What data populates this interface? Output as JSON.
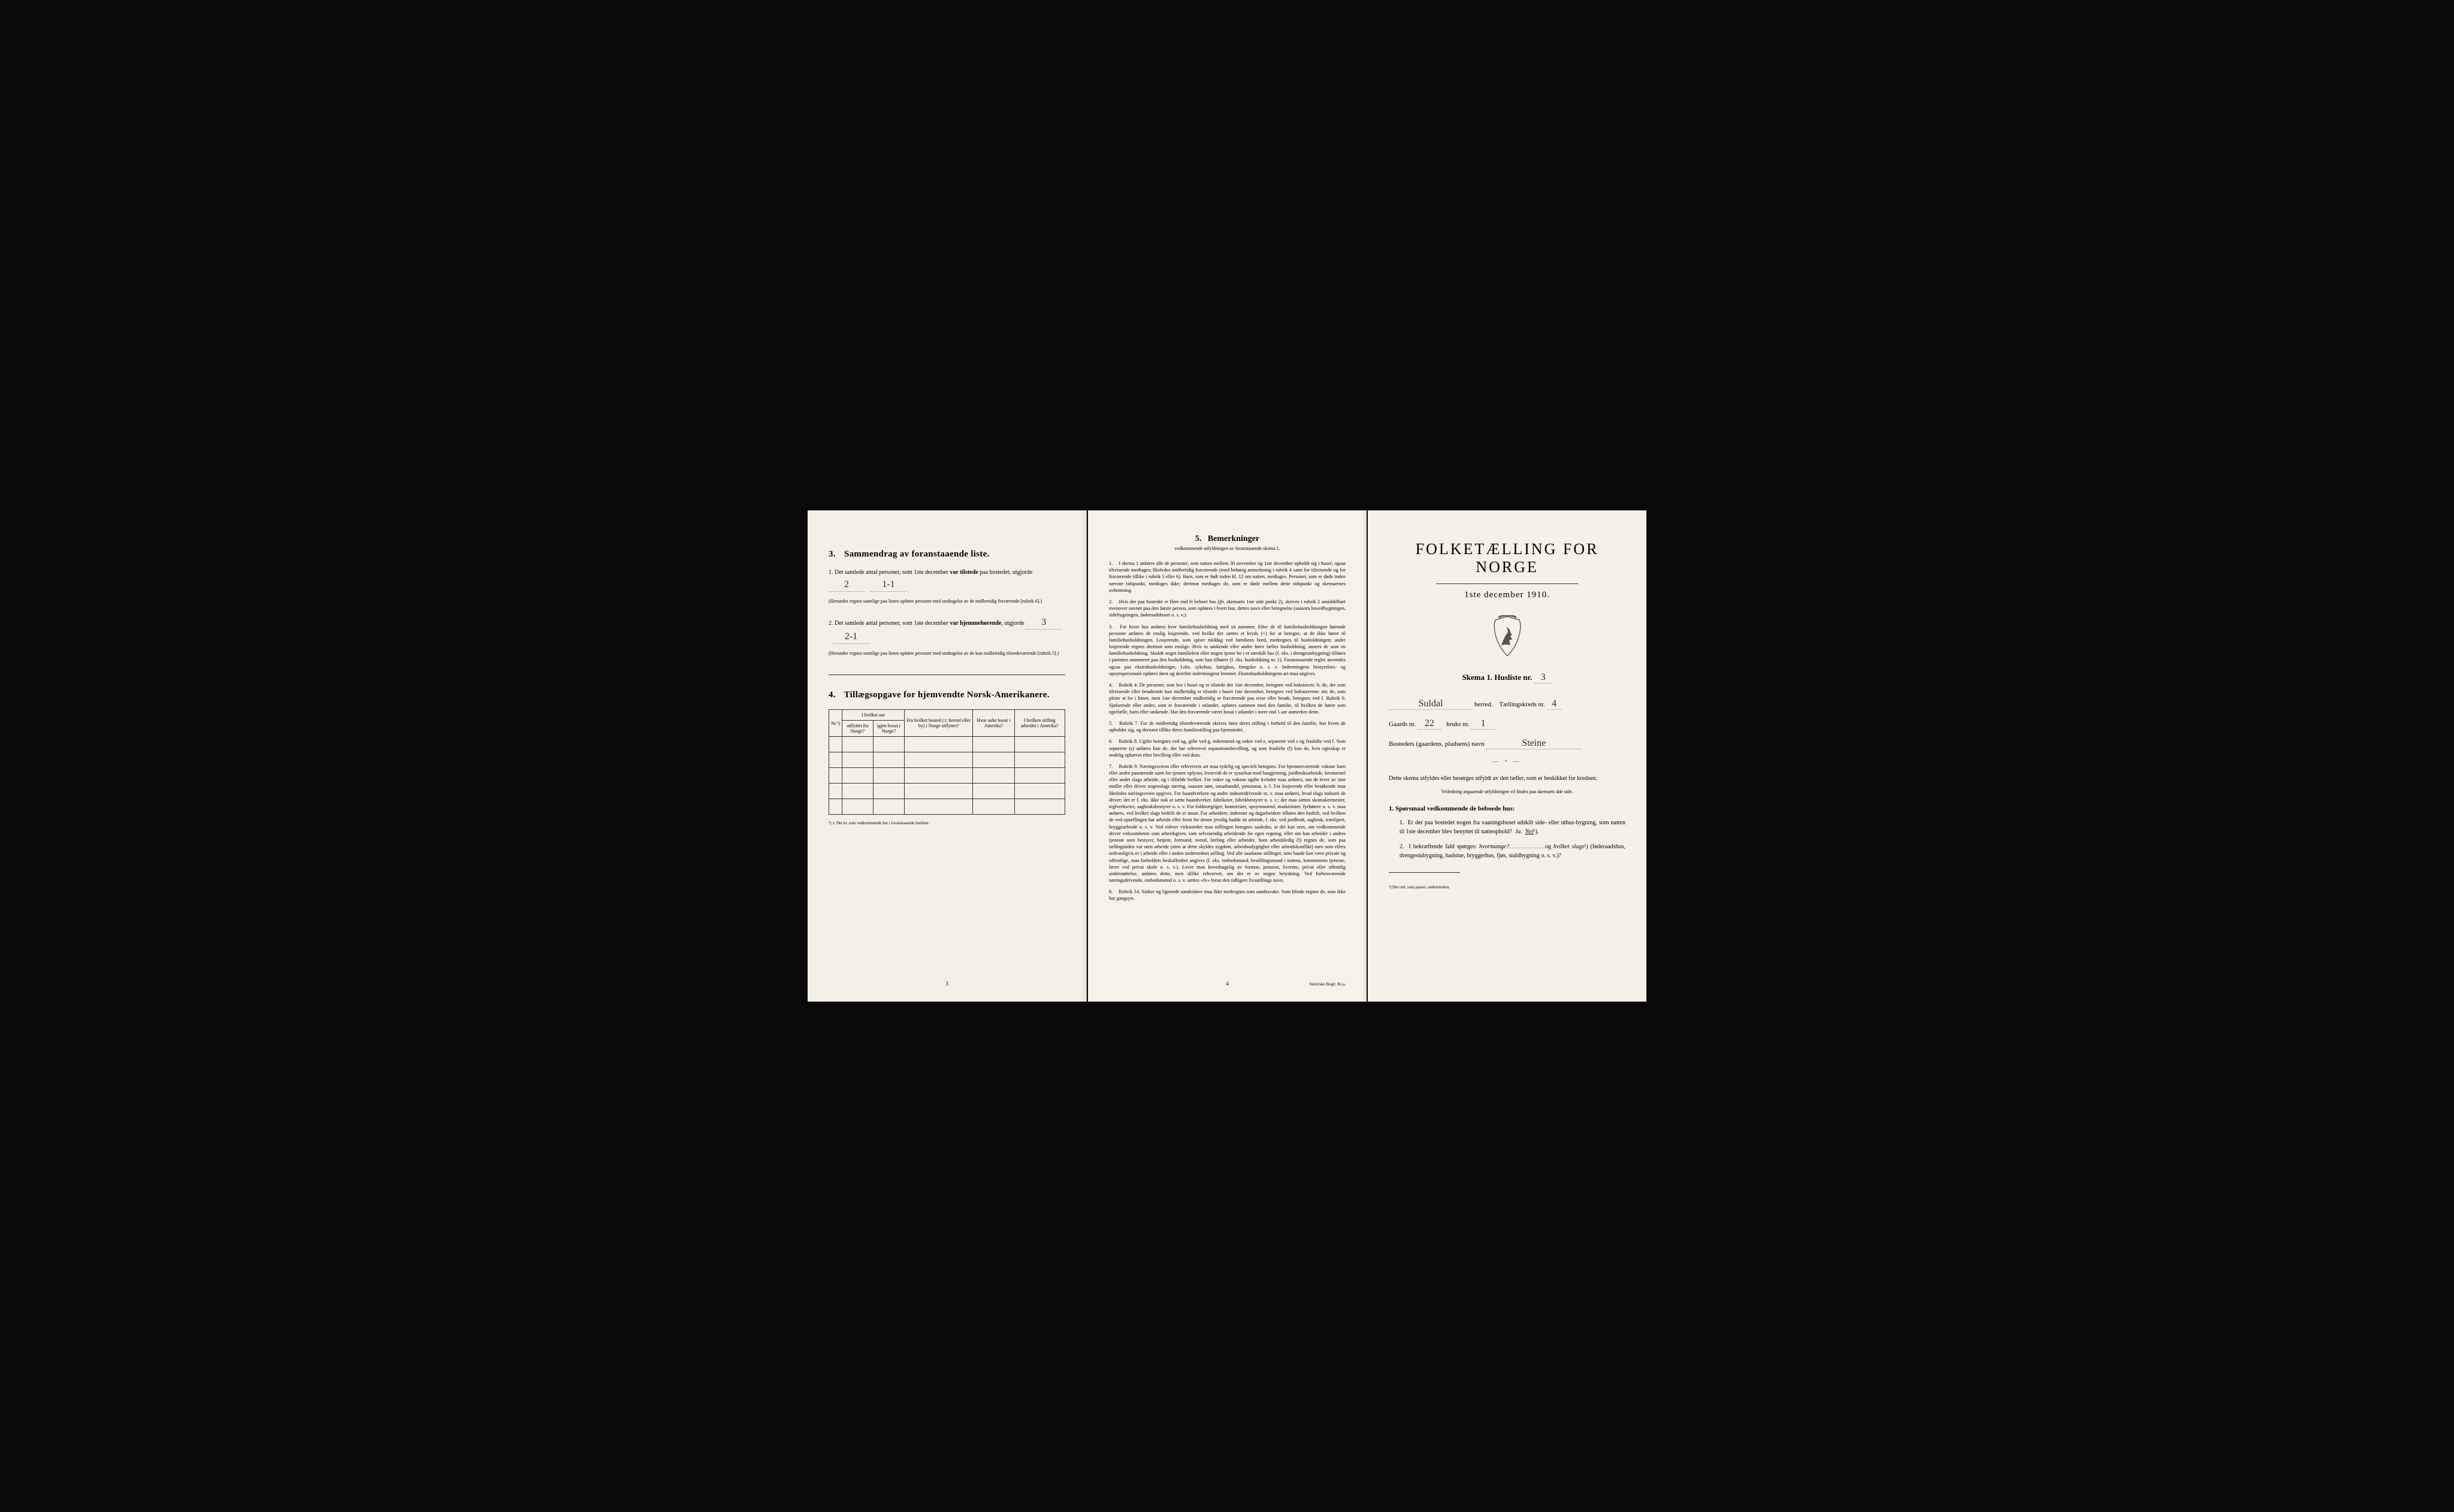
{
  "page3": {
    "section3": {
      "num": "3.",
      "title": "Sammendrag av foranstaaende liste.",
      "item1_pre": "1.  Det samlede antal personer, som 1ste december ",
      "item1_bold": "var tilstede",
      "item1_post": " paa bostedet, utgjorde",
      "val1a": "2",
      "val1b": "1-1",
      "item1_note": "(Herunder regnes samtlige paa listen opførte personer med undtagelse av de midlertidig fraværende [rubrik 6].)",
      "item2_pre": "2.  Det samlede antal personer, som 1ste december ",
      "item2_bold": "var hjemmehørende",
      "item2_post": ", utgjorde",
      "val2a": "3",
      "val2b": "2-1",
      "item2_note": "(Herunder regnes samtlige paa listen opførte personer med undtagelse av de kun midlertidig tilstedeværende [rubrik 5].)"
    },
    "section4": {
      "num": "4.",
      "title": "Tillægsopgave for hjemvendte Norsk-Amerikanere.",
      "col_nr": "Nr.¹)",
      "col_grp1": "I hvilket aar",
      "col1a": "utflyttet fra Norge?",
      "col1b": "igjen bosat i Norge?",
      "col2_top": "Fra hvilket bosted (ɔ: herred eller by) i Norge utflyttet?",
      "col3": "Hvor sidst bosat i Amerika?",
      "col4": "I hvilken stilling arbeidet i Amerika?",
      "footnote": "¹) ɔ: Det nr. som vedkommende har i foranstaaende husliste."
    },
    "page_num": "3"
  },
  "page4": {
    "num": "5.",
    "title": "Bemerkninger",
    "subtitle": "vedkommende utfyldningen av foranstaaende skema 1.",
    "items": [
      "I skema 1 anføres alle de personer, som natten mellem 30 november og 1ste december opholdt sig i huset; ogsaa tilreisende medtages; likeledes midlertidig fraværende (med behørig anmerkning i rubrik 4 samt for tilreisende og for fraværende tillike i rubrik 5 eller 6). Barn, som er født inden kl. 12 om natten, medtages. Personer, som er døde inden nævnte tidspunkt, medtages ikke; derimot medtages de, som er døde mellem dette tidspunkt og skemaernes avhentning.",
      "Hvis der paa bostedet er flere end ét beboet hus (jfr. skemaets 1ste side punkt 2), skrives i rubrik 2 umiddelbart ovenover navnet paa den første person, som opføres i hvert hus, dettes navn eller betegnelse (saasom hovedbygningen, sidebygningen, føderaadshuset o. s. v.).",
      "For hvert hus anføres hver familiehusholdning med sit nummer. Efter de til familiehusholdningen hørende personer anføres de enslig losjerende, ved hvilke der sættes et kryds (×) for at betegne, at de ikke hører til familiehusholdningen. Losjerende, som spiser middag ved familiens bord, medregnes til husholdningen; andre losjerende regnes derimot som enslige. Hvis to søskende eller andre fører fælles husholdning, ansees de som en familiehusholdning. Skulde noget familielem eller nogen tjener bo i et særskilt hus (f. eks. i drengestubygning) tilføies i parentes nummeret paa den husholdning, som han tilhører (f. eks. husholdning nr. 1).\n    Foranstaaende regler anvendes ogsaa paa ekstrahusholdninger, f.eks. sykehus, fattighus, fængsler o. s. v. Indretningens bestyrelses- og opsynspersonale opføres først og derefter indretningens lemmer. Ekstrahusholdningens art maa angives.",
      "Rubrik 4. De personer, som bor i huset og er tilstede der 1ste december, betegnes ved bokstaven: b; de, der som tilreisende eller besøkende kun midlertidig er tilstede i huset 1ste december, betegnes ved bokstaverne: mt; de, som pleier at bo i huset, men 1ste december midlertidig er fraværende paa reise eller besøk, betegnes ved f.\n    Rubrik 6. Sjøfarende eller andre, som er fraværende i utlandet, opføres sammen med den familie, til hvilken de hører som egtefælle, barn eller søskende.\n    Har den fraværende været bosat i utlandet i mere end 1 aar anmerkes dette.",
      "Rubrik 7. For de midlertidig tilstedeværende skrives først deres stilling i forhold til den familie, hos hvem de opholder sig, og dernæst tillike deres familiestilling paa hjemstedet.",
      "Rubrik 8. Ugifte betegnes ved ug, gifte ved g, enkemænd og enker ved e, separerte ved s og fraskilte ved f. Som separerte (s) anføres kun de, der har erhvervet separationsbevilling, og som fraskilte (f) kun de, hvis egteskap er endelig ophævet efter bevilling eller ved dom.",
      "Rubrik 9. Næringsveiens eller erhvervets art maa tydelig og specielt betegnes.\n    For hjemmeværende voksne barn eller andre paarørende samt for tjenere oplyses, hvorvidt de er sysselsat med husgjerning, jordbruksarbeide, kreaturstel eller andet slags arbeide, og i tilfælde hvilket. For enker og voksne ugifte kvinder maa anføres, om de lever av sine midler eller driver nogenslags næring, saasom søm, smaahandel, pensionat, o. l.\n    For losjerende eller besøkende maa likeledes næringsveien opgives.\n    For haandverkere og andre industridrivende m. v. maa anføres, hvad slags industri de driver; det er f. eks. ikke nok at sætte haandverker, fabrikeier, fabrikbestyrer o. s. v.; der maa sættes skomakermester, teglverkseier, sagbruksbestyrer o. s. v.\n    For fuldmægtiger, kontorister, opsynsmænd, maskinister, fyrbøtere o. s. v. maa anføres, ved hvilket slags bedrift de er ansat.\n    For arbeidere, inderster og dagarbeidere tilføies den bedrift, ved hvilken de ved optællingen har arbeide eller forut for denne jevnlig hadde sit arbeide, f. eks. ved jordbruk, sagbruk, træsliperi, bryggearbeide o. s. v.\n    Ved enhver virksomhet maa stillingen betegnes saaledes, at det kan sees, om vedkommende driver virksomheten som arbeidsgiver, som selvstændig arbeidende for egen regning, eller om han arbeider i andres tjeneste som bestyrer, betjent, formand, svend, lærling eller arbeider.\n    Som arbeidsledig (l) regnes de, som paa tællingstiden var uten arbeide (uten at dette skyldes sygdom, arbeidsudygtighet eller arbeidskonflikt) men som ellers sedvanligvis er i arbeide eller i anden underordnet stilling.\n    Ved alle saadanne stillinger, som baade kan være private og offentlige, maa forholdets beskaffenhet angives (f. eks. embedsmand, bestillingsmand i statens, kommunens tjeneste, lærer ved privat skole o. s. v.).\n    Lever man hovedsagelig av formue, pension, livrente, privat eller offentlig understøttelse, anføres dette, men tillike erhvervet, om det er av nogen betydning.\n    Ved forhenværende næringsdrivende, embedsmænd o. s. v. sættes «fv» foran den tidligere livsstillings navn.",
      "Rubrik 14. Sinker og lignende aandssløve maa ikke medregnes som aandssvake. Som blinde regnes de, som ikke har gangsyn."
    ],
    "page_num": "4",
    "printer": "Steen'ske Bogtr. Kr.a."
  },
  "page1": {
    "main_title": "FOLKETÆLLING FOR NORGE",
    "date": "1ste december 1910.",
    "skema_label": "Skema 1.  Husliste nr.",
    "husliste_nr": "3",
    "herred_val": "Suldal",
    "herred_label": "herred.",
    "kreds_label": "Tællingskreds nr.",
    "kreds_val": "4",
    "gaards_label": "Gaards nr.",
    "gaards_val": "22",
    "bruks_label": "bruks nr.",
    "bruks_val": "1",
    "bostedet_label": "Bostedets (gaardens, pladsens) navn",
    "bostedet_val": "Steine",
    "instr1": "Dette skema utfyldes eller besørges utfyldt av den tæller, som er beskikket for kredsen.",
    "instr2": "Veiledning angaaende utfyldningen vil findes paa skemaets 4de side.",
    "q_heading": "1. Spørsmaal vedkommende de beboede hus:",
    "q1": "Er der paa bostedet nogen fra vaaningshuset adskilt side- eller uthus-bygning, som natten til 1ste december blev benyttet til natteophold?",
    "q1_ja": "Ja.",
    "q1_nei": "Nei",
    "q1_sup": "¹).",
    "q2_pre": "I bekræftende fald spørges: ",
    "q2_ital1": "hvormange?",
    "q2_mid": "og ",
    "q2_ital2": "hvilket slags",
    "q2_sup": "¹)",
    "q2_post": " (føderaadshus, drengestubygning, badstue, bryggerhus, fjøs, staldbygning o. s. v.)?",
    "footnote": "¹) Det ord, som passer, understrekes."
  }
}
